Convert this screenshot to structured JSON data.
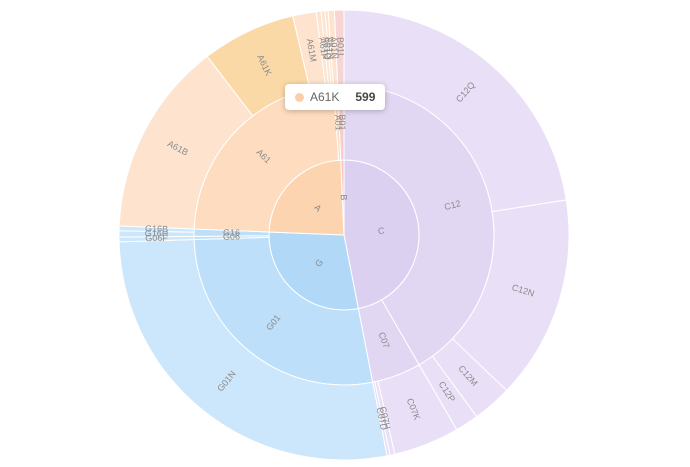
{
  "chart_data": {
    "type": "sunburst",
    "tooltip": {
      "name": "A61K",
      "value": 599,
      "color": "#fccfa6"
    },
    "data": [
      {
        "name": "C",
        "value": 4170,
        "color": "#dcd0f0",
        "children": [
          {
            "name": "C12",
            "value": 3700,
            "color": "#e2d7f3",
            "children": [
              {
                "name": "C12Q",
                "value": 2000,
                "color": "#e9e0f7"
              },
              {
                "name": "C12N",
                "value": 1300,
                "color": "#e9e0f7"
              },
              {
                "name": "C12M",
                "value": 250,
                "color": "#e9e0f7"
              },
              {
                "name": "C12P",
                "value": 150,
                "color": "#e9e0f7"
              }
            ]
          },
          {
            "name": "C07",
            "value": 470,
            "color": "#e2d7f3",
            "children": [
              {
                "name": "C07K",
                "value": 420,
                "color": "#e9e0f7"
              },
              {
                "name": "C07H",
                "value": 30,
                "color": "#e9e0f7"
              },
              {
                "name": "C07D",
                "value": 20,
                "color": "#e9e0f7"
              }
            ]
          }
        ]
      },
      {
        "name": "G",
        "value": 2550,
        "color": "#b2d8f7",
        "children": [
          {
            "name": "G01",
            "value": 2450,
            "color": "#bddff9",
            "children": [
              {
                "name": "G01N",
                "value": 2450,
                "color": "#cce6fb"
              }
            ]
          },
          {
            "name": "G06",
            "value": 30,
            "color": "#bddff9",
            "children": [
              {
                "name": "G06F",
                "value": 30,
                "color": "#cce6fb"
              }
            ]
          },
          {
            "name": "G16",
            "value": 70,
            "color": "#bddff9",
            "children": [
              {
                "name": "G16H",
                "value": 40,
                "color": "#cce6fb"
              },
              {
                "name": "G16B",
                "value": 30,
                "color": "#cce6fb"
              }
            ]
          }
        ]
      },
      {
        "name": "A",
        "value": 2104,
        "color": "#fdd4b0",
        "children": [
          {
            "name": "A61",
            "value": 2064,
            "color": "#fedcbf",
            "children": [
              {
                "name": "A61B",
                "value": 1240,
                "color": "#fee4cf"
              },
              {
                "name": "A61K",
                "value": 599,
                "color": "#fbd9a6"
              },
              {
                "name": "A61M",
                "value": 150,
                "color": "#fee4cf"
              },
              {
                "name": "A61P",
                "value": 30,
                "color": "#fee4cf"
              },
              {
                "name": "A61Q",
                "value": 25,
                "color": "#fee4cf"
              },
              {
                "name": "A61N",
                "value": 20,
                "color": "#fee4cf"
              }
            ]
          },
          {
            "name": "A01",
            "value": 40,
            "color": "#fedcbf",
            "children": [
              {
                "name": "A01N",
                "value": 40,
                "color": "#fee4cf"
              }
            ]
          }
        ]
      },
      {
        "name": "B",
        "value": 60,
        "color": "#f4c4c4",
        "children": [
          {
            "name": "B01",
            "value": 60,
            "color": "#f6cccc",
            "children": [
              {
                "name": "B01L",
                "value": 60,
                "color": "#f8d4d4"
              }
            ]
          }
        ]
      }
    ]
  }
}
